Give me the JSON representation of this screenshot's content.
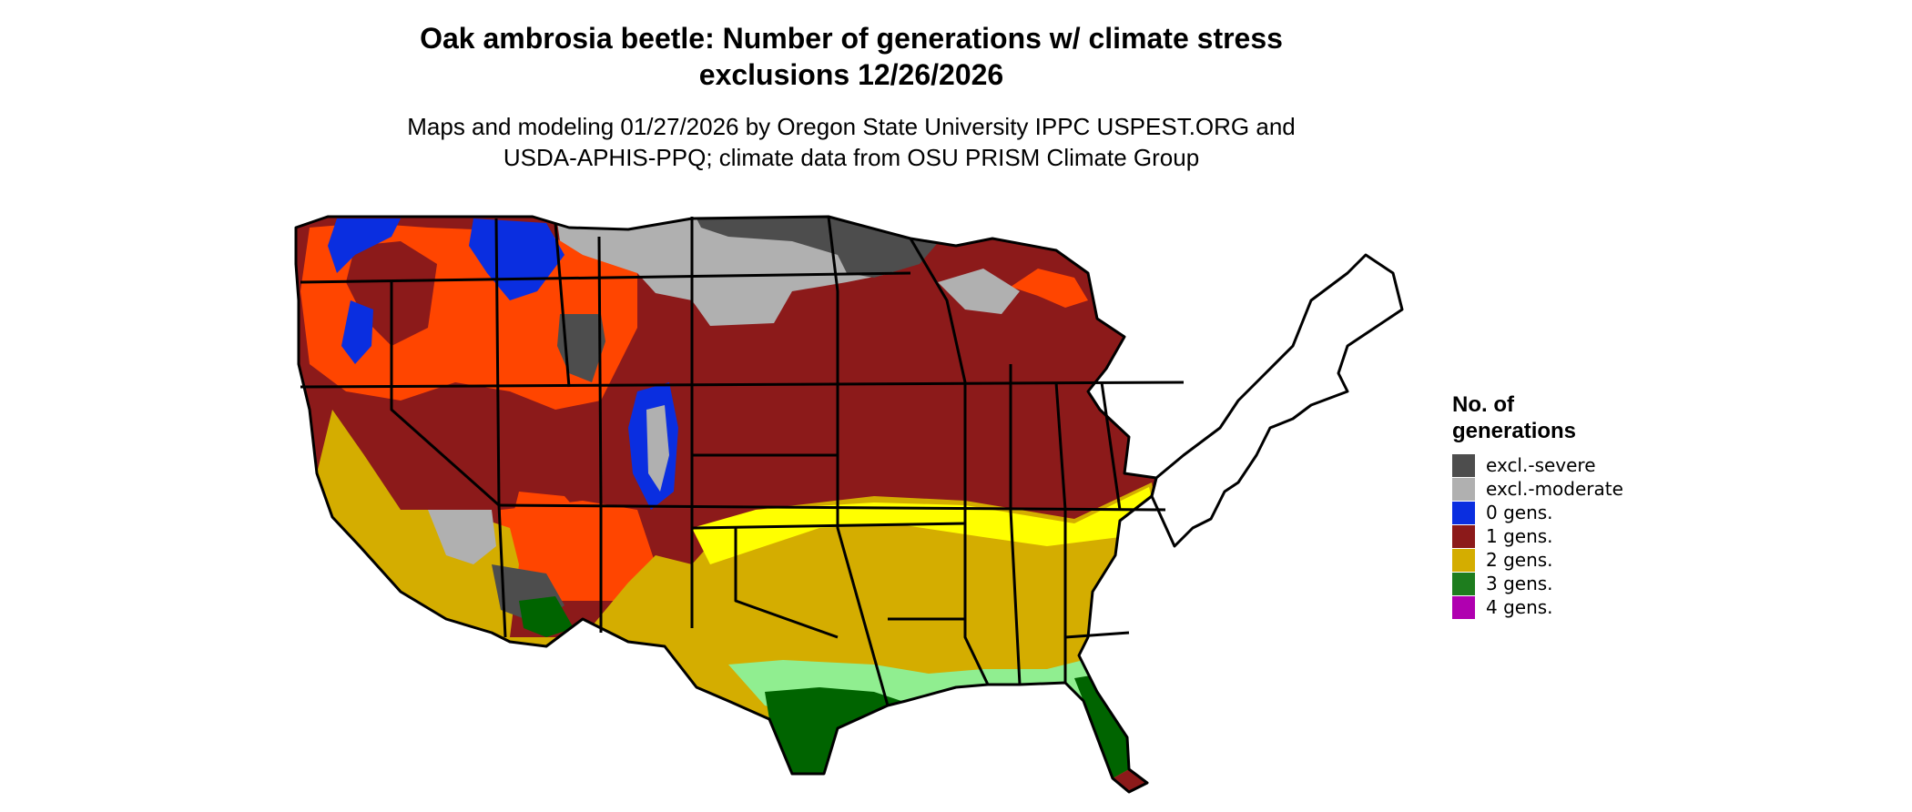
{
  "title": {
    "line1": "Oak ambrosia beetle: Number of generations w/ climate stress",
    "line2": "exclusions 12/26/2026"
  },
  "subtitle": {
    "line1": "Maps and modeling 01/27/2026 by Oregon State University IPPC USPEST.ORG and",
    "line2": "USDA-APHIS-PPQ; climate data from OSU PRISM Climate Group"
  },
  "legend": {
    "title_line1": "No. of",
    "title_line2": "generations",
    "items": [
      {
        "label": "excl.-severe",
        "color": "#4d4d4d"
      },
      {
        "label": "excl.-moderate",
        "color": "#b0b0b0"
      },
      {
        "label": "0 gens.",
        "color": "#0a2ee0"
      },
      {
        "label": "1 gens.",
        "color": "#8c1a1a"
      },
      {
        "label": "2 gens.",
        "color": "#d4ad00"
      },
      {
        "label": "3 gens.",
        "color": "#1e7d1e"
      },
      {
        "label": "4 gens.",
        "color": "#b000b0"
      }
    ]
  },
  "map": {
    "colors": {
      "excl_severe": "#4d4d4d",
      "excl_moderate": "#b0b0b0",
      "gens_0": "#0a2ee0",
      "gens_1": "#8c1a1a",
      "gens_1_variant": "#ff4500",
      "gens_2": "#d4ad00",
      "gens_2_variant": "#ffff00",
      "gens_3": "#006400",
      "gens_3_variant": "#90ee90",
      "gens_4": "#b000b0",
      "border": "#000000"
    }
  }
}
